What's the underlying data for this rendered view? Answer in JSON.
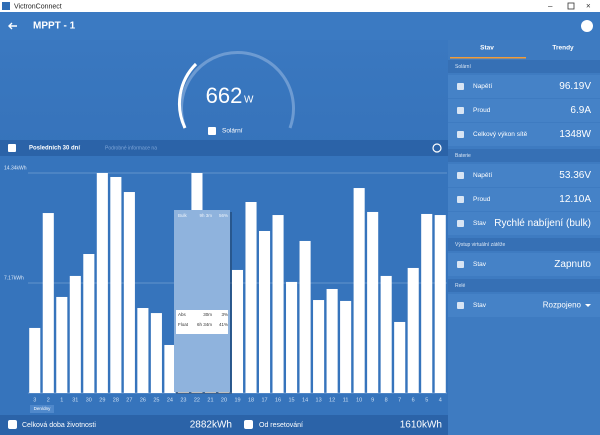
{
  "window_title": "VictronConnect",
  "header": {
    "title": "MPPT - 1"
  },
  "gauge": {
    "value": "662",
    "unit": "W",
    "label": "Solární"
  },
  "toolbar": {
    "period": "Posledních 30 dní",
    "info": "Podrobné informace na"
  },
  "chart": {
    "type": "bar",
    "categories": [
      "3",
      "2",
      "1",
      "31",
      "30",
      "29",
      "28",
      "27",
      "26",
      "25",
      "24",
      "23",
      "22",
      "21",
      "20",
      "19",
      "18",
      "17",
      "16",
      "15",
      "14",
      "13",
      "12",
      "11",
      "10",
      "9",
      "8",
      "7",
      "6",
      "5",
      "4"
    ],
    "values": [
      4.24,
      11.73,
      6.26,
      7.63,
      9.06,
      14.34,
      14.08,
      13.1,
      5.54,
      5.21,
      3.13,
      9.0,
      14.34,
      10.5,
      11.0,
      8.02,
      12.45,
      10.56,
      11.6,
      7.24,
      9.91,
      6.06,
      6.78,
      6.0,
      13.36,
      11.8,
      7.63,
      4.63,
      8.15,
      11.67,
      11.6
    ],
    "ylim": [
      0,
      14.34
    ],
    "yticks": [
      {
        "value": 7.17,
        "label": "7.17kWh"
      },
      {
        "value": 14.34,
        "label": "14.34kWh"
      }
    ],
    "unit_button": "Den/dny",
    "tooltip": {
      "rows": [
        [
          "Bulk",
          "9h 3m",
          "56%"
        ],
        [
          "Abs",
          "30m",
          "3%"
        ],
        [
          "Float",
          "6h 34m",
          "41%"
        ]
      ]
    }
  },
  "footer": {
    "lifetime_label": "Celková doba životnosti",
    "lifetime_value": "2882kWh",
    "reset_label": "Od resetování",
    "reset_value": "1610kWh"
  },
  "panel": {
    "tabs": [
      "Stav",
      "Trendy"
    ],
    "sections": [
      {
        "title": "Solární",
        "rows": [
          {
            "label": "Napětí",
            "value": "96.19V"
          },
          {
            "label": "Proud",
            "value": "6.9A"
          },
          {
            "label": "Celkový výkon sítě",
            "value": "1348W"
          }
        ]
      },
      {
        "title": "Baterie",
        "rows": [
          {
            "label": "Napětí",
            "value": "53.36V"
          },
          {
            "label": "Proud",
            "value": "12.10A"
          },
          {
            "label": "Stav",
            "value": "Rychlé nabíjení (bulk)"
          }
        ]
      },
      {
        "title": "Výstup virtuální zátěže",
        "rows": [
          {
            "label": "Stav",
            "value": "Zapnuto"
          }
        ]
      },
      {
        "title": "Relé",
        "rows": [
          {
            "label": "Stav",
            "value": "Rozpojeno"
          }
        ]
      }
    ]
  }
}
